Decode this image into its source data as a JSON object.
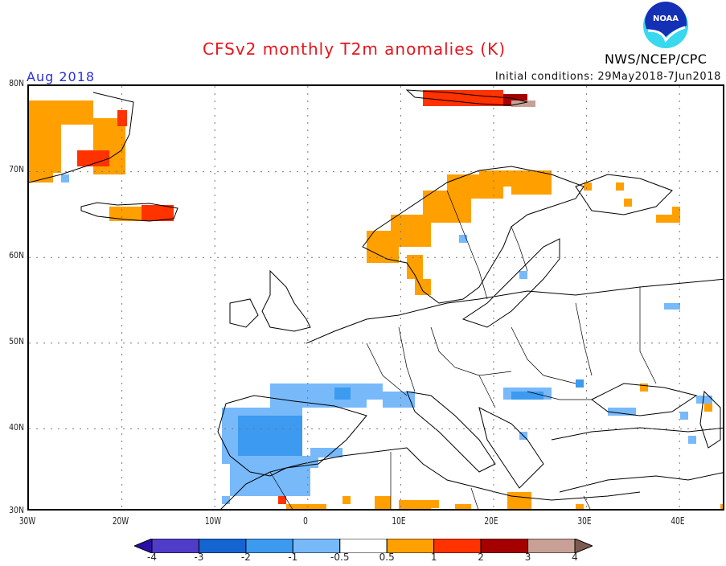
{
  "header": {
    "title": "CFSv2 monthly T2m anomalies (K)",
    "agency": "NWS/NCEP/CPC",
    "logo_text": "NOAA",
    "target_month": "Aug 2018",
    "initial_conditions": "Initial conditions: 29May2018-7Jun2018"
  },
  "map": {
    "region": "Europe",
    "lat_range": [
      30,
      80
    ],
    "lon_range": [
      -30,
      45
    ],
    "lat_labels": [
      "80N",
      "70N",
      "60N",
      "50N",
      "40N",
      "30N"
    ],
    "lon_labels": [
      "30W",
      "20W",
      "10W",
      "0",
      "10E",
      "20E",
      "30E",
      "40E"
    ],
    "gridlines": "dotted",
    "anomaly_regions": [
      {
        "area": "Greenland east coast",
        "category": "0.5 to 1",
        "note": "broad warm, patches 1 to 2"
      },
      {
        "area": "Iceland",
        "category": "0.5 to 2"
      },
      {
        "area": "Svalbard",
        "category": "1 to >4"
      },
      {
        "area": "Norway / northern Scandinavia",
        "category": "0.5 to 1"
      },
      {
        "area": "Northern Russia / White Sea",
        "category": "0.5 to 1"
      },
      {
        "area": "Iberian Peninsula",
        "category": "-2 to -0.5"
      },
      {
        "area": "Southern France / N Italy",
        "category": "-2 to -0.5"
      },
      {
        "area": "Northwest Africa (Morocco/Algeria)",
        "category": "-1 to -0.5"
      },
      {
        "area": "North Africa coast (Libya/Egypt)",
        "category": "0.5 to 1"
      },
      {
        "area": "Romania / Bulgaria",
        "category": "-2 to -0.5"
      },
      {
        "area": "Northern Turkey",
        "category": "-1 to -0.5"
      },
      {
        "area": "Caucasus",
        "category": "0.5 to 1"
      }
    ]
  },
  "colorbar": {
    "levels": [
      "-4",
      "-3",
      "-2",
      "-1",
      "-0.5",
      "0.5",
      "1",
      "2",
      "3",
      "4"
    ],
    "colors": [
      "#2a0fa8",
      "#4f3cc8",
      "#1464d2",
      "#3c9af0",
      "#78b9fa",
      "#ffffff",
      "#ffa000",
      "#ff3200",
      "#a50000",
      "#c8a096",
      "#7d5a50"
    ]
  }
}
